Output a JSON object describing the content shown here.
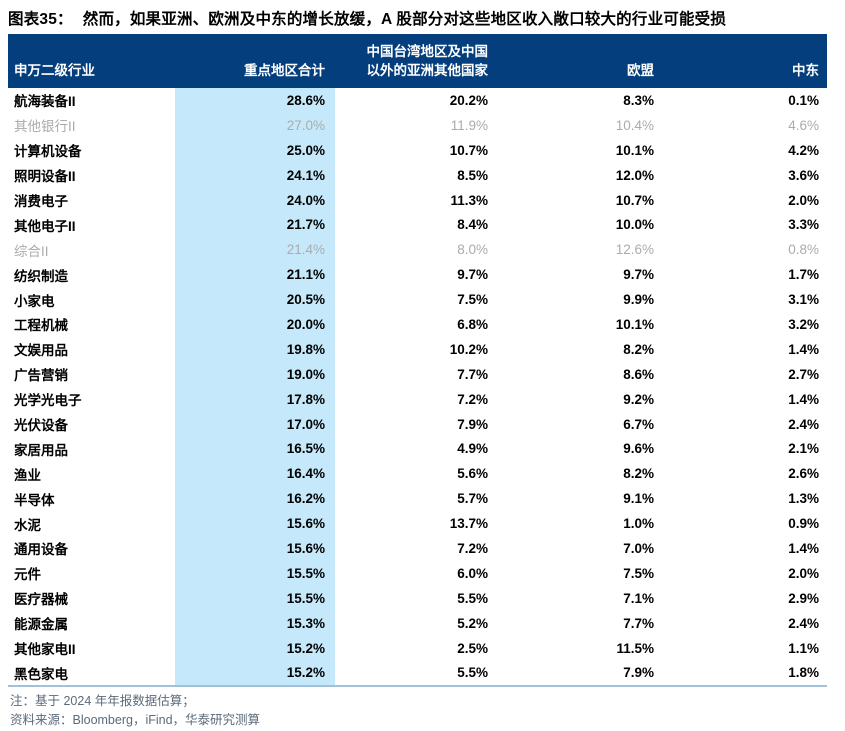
{
  "title": {
    "fig_label": "图表35：",
    "text": "然而，如果亚洲、欧洲及中东的增长放缓，A 股部分对这些地区收入敞口较大的行业可能受损"
  },
  "colors": {
    "header_bg": "#043e7d",
    "header_text": "#ffffff",
    "highlight_column_bg": "#c5e9fa",
    "dimmed_row_text": "#ababab",
    "normal_row_text": "#000000",
    "bottom_rule": "#a3c0da",
    "notes_text": "#5c6b7a"
  },
  "chart_data": {
    "type": "table",
    "title": "然而，如果亚洲、欧洲及中东的增长放缓，A 股部分对这些地区收入敞口较大的行业可能受损",
    "header": {
      "col1": "申万二级行业",
      "col2": "重点地区合计",
      "col3_line1": "中国台湾地区及中国",
      "col3_line2": "以外的亚洲其他国家",
      "col4": "欧盟",
      "col5": "中东"
    },
    "columns": [
      "申万二级行业",
      "重点地区合计",
      "中国台湾地区及中国以外的亚洲其他国家",
      "欧盟",
      "中东"
    ],
    "rows": [
      {
        "industry": "航海装备II",
        "values": [
          "28.6%",
          "20.2%",
          "8.3%",
          "0.1%"
        ],
        "dimmed": false
      },
      {
        "industry": "其他银行II",
        "values": [
          "27.0%",
          "11.9%",
          "10.4%",
          "4.6%"
        ],
        "dimmed": true
      },
      {
        "industry": "计算机设备",
        "values": [
          "25.0%",
          "10.7%",
          "10.1%",
          "4.2%"
        ],
        "dimmed": false
      },
      {
        "industry": "照明设备II",
        "values": [
          "24.1%",
          "8.5%",
          "12.0%",
          "3.6%"
        ],
        "dimmed": false
      },
      {
        "industry": "消费电子",
        "values": [
          "24.0%",
          "11.3%",
          "10.7%",
          "2.0%"
        ],
        "dimmed": false
      },
      {
        "industry": "其他电子II",
        "values": [
          "21.7%",
          "8.4%",
          "10.0%",
          "3.3%"
        ],
        "dimmed": false
      },
      {
        "industry": "综合II",
        "values": [
          "21.4%",
          "8.0%",
          "12.6%",
          "0.8%"
        ],
        "dimmed": true
      },
      {
        "industry": "纺织制造",
        "values": [
          "21.1%",
          "9.7%",
          "9.7%",
          "1.7%"
        ],
        "dimmed": false
      },
      {
        "industry": "小家电",
        "values": [
          "20.5%",
          "7.5%",
          "9.9%",
          "3.1%"
        ],
        "dimmed": false
      },
      {
        "industry": "工程机械",
        "values": [
          "20.0%",
          "6.8%",
          "10.1%",
          "3.2%"
        ],
        "dimmed": false
      },
      {
        "industry": "文娱用品",
        "values": [
          "19.8%",
          "10.2%",
          "8.2%",
          "1.4%"
        ],
        "dimmed": false
      },
      {
        "industry": "广告营销",
        "values": [
          "19.0%",
          "7.7%",
          "8.6%",
          "2.7%"
        ],
        "dimmed": false
      },
      {
        "industry": "光学光电子",
        "values": [
          "17.8%",
          "7.2%",
          "9.2%",
          "1.4%"
        ],
        "dimmed": false
      },
      {
        "industry": "光伏设备",
        "values": [
          "17.0%",
          "7.9%",
          "6.7%",
          "2.4%"
        ],
        "dimmed": false
      },
      {
        "industry": "家居用品",
        "values": [
          "16.5%",
          "4.9%",
          "9.6%",
          "2.1%"
        ],
        "dimmed": false
      },
      {
        "industry": "渔业",
        "values": [
          "16.4%",
          "5.6%",
          "8.2%",
          "2.6%"
        ],
        "dimmed": false
      },
      {
        "industry": "半导体",
        "values": [
          "16.2%",
          "5.7%",
          "9.1%",
          "1.3%"
        ],
        "dimmed": false
      },
      {
        "industry": "水泥",
        "values": [
          "15.6%",
          "13.7%",
          "1.0%",
          "0.9%"
        ],
        "dimmed": false
      },
      {
        "industry": "通用设备",
        "values": [
          "15.6%",
          "7.2%",
          "7.0%",
          "1.4%"
        ],
        "dimmed": false
      },
      {
        "industry": "元件",
        "values": [
          "15.5%",
          "6.0%",
          "7.5%",
          "2.0%"
        ],
        "dimmed": false
      },
      {
        "industry": "医疗器械",
        "values": [
          "15.5%",
          "5.5%",
          "7.1%",
          "2.9%"
        ],
        "dimmed": false
      },
      {
        "industry": "能源金属",
        "values": [
          "15.3%",
          "5.2%",
          "7.7%",
          "2.4%"
        ],
        "dimmed": false
      },
      {
        "industry": "其他家电II",
        "values": [
          "15.2%",
          "2.5%",
          "11.5%",
          "1.1%"
        ],
        "dimmed": false
      },
      {
        "industry": "黑色家电",
        "values": [
          "15.2%",
          "5.5%",
          "7.9%",
          "1.8%"
        ],
        "dimmed": false
      }
    ]
  },
  "notes": {
    "note1": "注：基于 2024 年年报数据估算；",
    "note2": "资料来源：Bloomberg，iFind，华泰研究测算"
  }
}
